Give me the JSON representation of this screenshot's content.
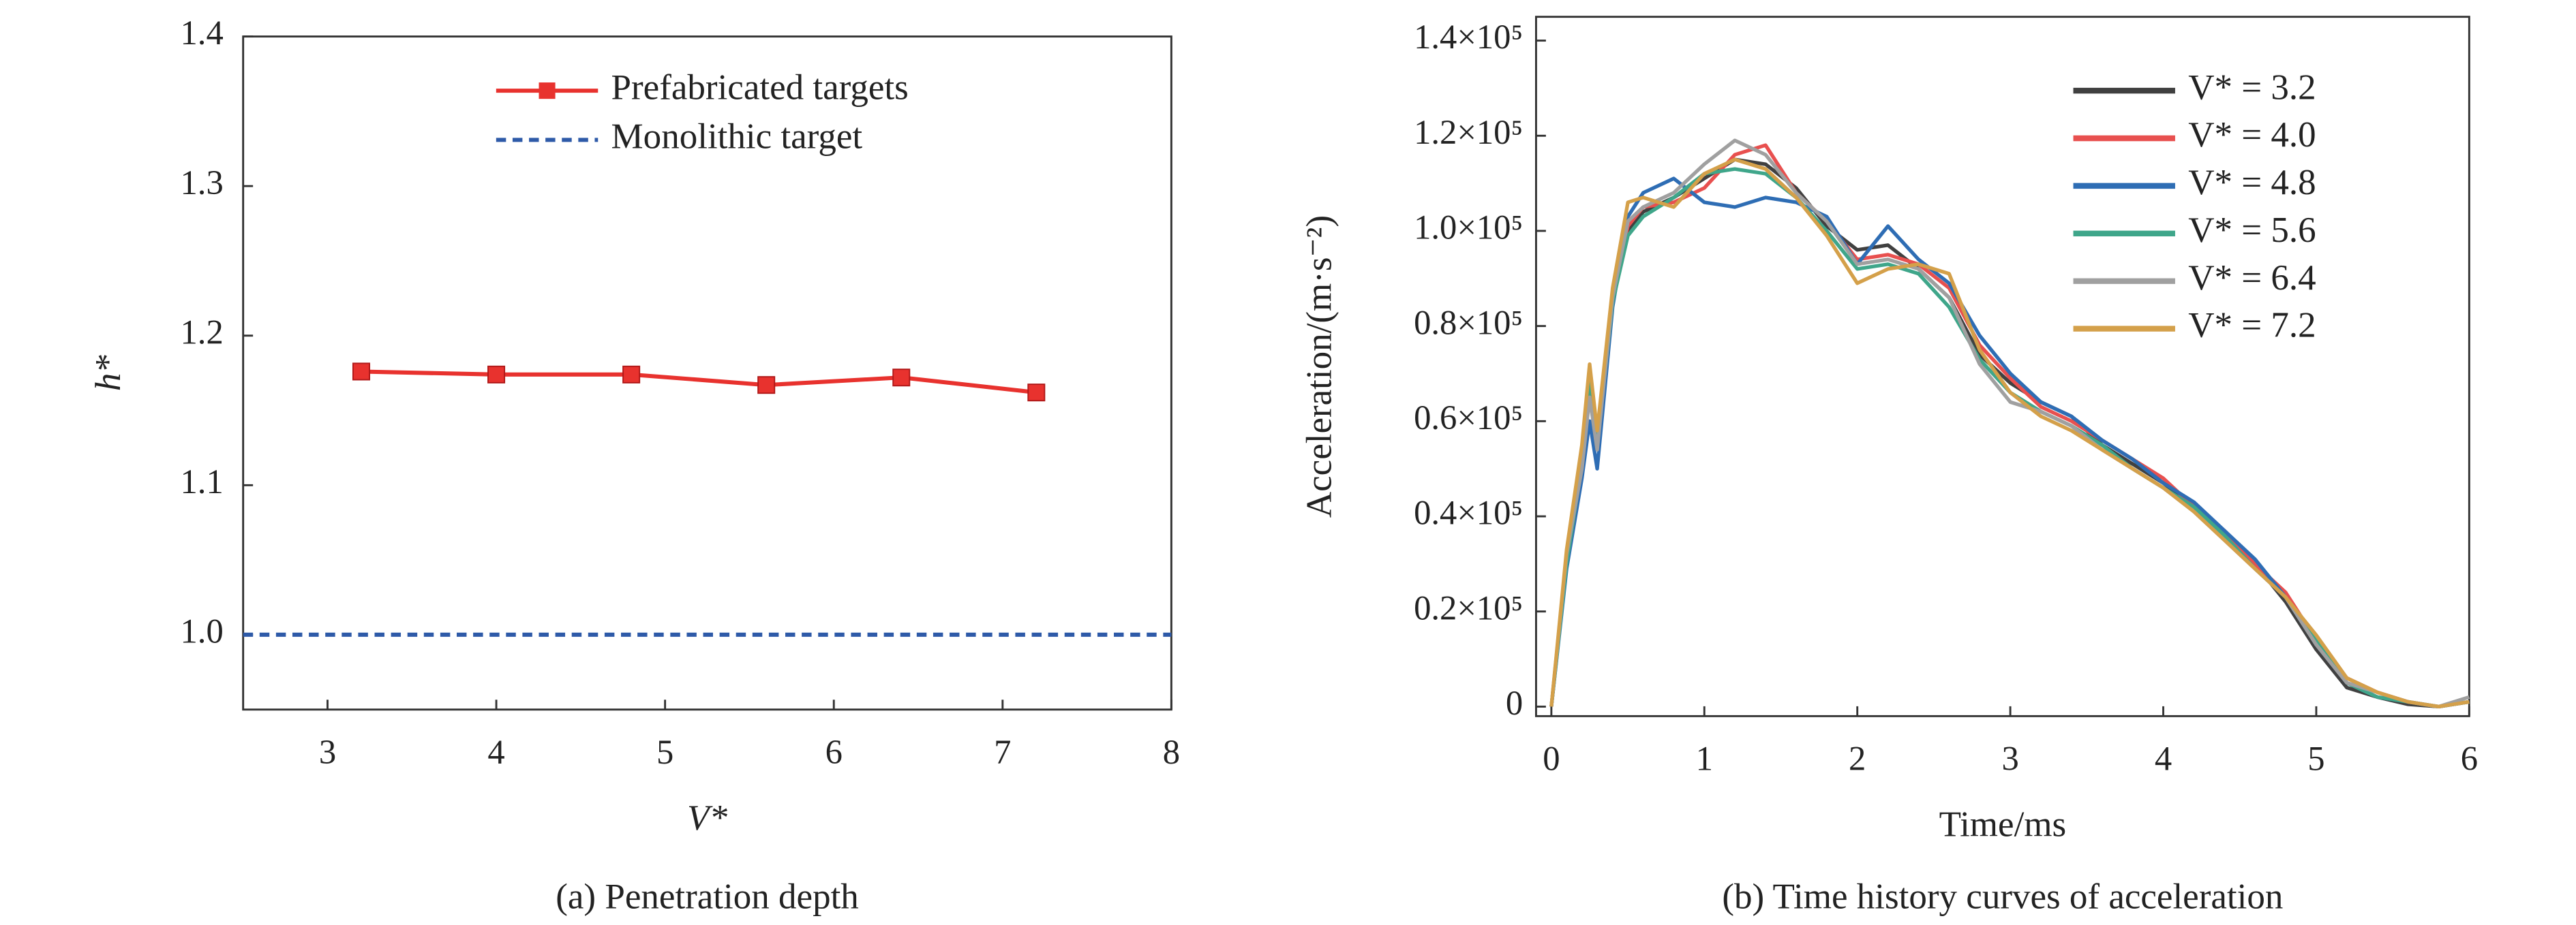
{
  "chart_data": [
    {
      "type": "line",
      "title": "(a) Penetration depth",
      "x_label": "V*",
      "y_label": "h*",
      "xlim": [
        2.5,
        8
      ],
      "xticks": [
        3,
        4,
        5,
        6,
        7,
        8
      ],
      "ylim": [
        0.95,
        1.4
      ],
      "yticks": [
        {
          "value": 1,
          "label": "1.0"
        },
        1.1,
        1.2,
        1.3,
        1.4
      ],
      "legend": "upper right",
      "series": [
        {
          "name": "Prefabricated targets",
          "color": "#e8322e",
          "marker": "square",
          "linestyle": "solid",
          "x": [
            3.2,
            4.0,
            4.8,
            5.6,
            6.4,
            7.2
          ],
          "values": [
            1.176,
            1.174,
            1.174,
            1.167,
            1.172,
            1.162
          ]
        },
        {
          "name": "Monolithic target",
          "color": "#2e5aa8",
          "linestyle": "dashed",
          "x": [
            2.5,
            8
          ],
          "values": [
            1.0,
            1.0
          ]
        }
      ]
    },
    {
      "type": "line",
      "title": "(b) Time history curves of acceleration",
      "x_label": "Time/ms",
      "y_label": "Acceleration/(m·s⁻²)",
      "xlim": [
        -0.1,
        6
      ],
      "xticks": [
        0,
        1,
        2,
        3,
        4,
        5,
        6
      ],
      "ylim": [
        -2000,
        145000
      ],
      "yticks": [
        0,
        {
          "value": 20000,
          "label": "0.2×10⁵"
        },
        {
          "value": 40000,
          "label": "0.4×10⁵"
        },
        {
          "value": 60000,
          "label": "0.6×10⁵"
        },
        {
          "value": 80000,
          "label": "0.8×10⁵"
        },
        {
          "value": 100000,
          "label": "1.0×10⁵"
        },
        {
          "value": 120000,
          "label": "1.2×10⁵"
        },
        {
          "value": 140000,
          "label": "1.4×10⁵"
        }
      ],
      "legend": "upper right",
      "x": [
        0,
        0.1,
        0.2,
        0.25,
        0.3,
        0.4,
        0.5,
        0.6,
        0.8,
        1.0,
        1.2,
        1.4,
        1.6,
        1.8,
        2.0,
        2.2,
        2.4,
        2.6,
        2.8,
        3.0,
        3.2,
        3.4,
        3.6,
        3.8,
        4.0,
        4.2,
        4.4,
        4.6,
        4.8,
        5.0,
        5.2,
        5.4,
        5.6,
        5.8,
        6.0
      ],
      "series": [
        {
          "name": "V* = 3.2",
          "color": "#404040",
          "linestyle": "solid",
          "values": [
            0,
            30000,
            50000,
            68000,
            56000,
            86000,
            100000,
            104000,
            107000,
            111000,
            115000,
            114000,
            109000,
            101000,
            96000,
            97000,
            92000,
            86000,
            74000,
            68000,
            64000,
            61000,
            55000,
            51000,
            47000,
            42000,
            36000,
            30000,
            22000,
            12000,
            4000,
            2000,
            500,
            0,
            1000
          ]
        },
        {
          "name": "V* = 4.0",
          "color": "#e8504f",
          "linestyle": "solid",
          "values": [
            0,
            31000,
            52000,
            70000,
            57000,
            87000,
            101000,
            105000,
            106000,
            109000,
            116000,
            118000,
            108000,
            102000,
            94000,
            95000,
            93000,
            88000,
            76000,
            69000,
            63000,
            60000,
            56000,
            52000,
            48000,
            42000,
            37000,
            30000,
            24000,
            14000,
            6000,
            3000,
            1000,
            0,
            1000
          ]
        },
        {
          "name": "V* = 4.8",
          "color": "#2e6db4",
          "linestyle": "solid",
          "values": [
            0,
            29000,
            48000,
            60000,
            50000,
            84000,
            103000,
            108000,
            111000,
            106000,
            105000,
            107000,
            106000,
            103000,
            93000,
            101000,
            94000,
            89000,
            78000,
            70000,
            64000,
            61000,
            56000,
            52000,
            47000,
            43000,
            37000,
            31000,
            23000,
            13000,
            5000,
            2000,
            1000,
            0,
            1000
          ]
        },
        {
          "name": "V* = 5.6",
          "color": "#3fa68a",
          "linestyle": "solid",
          "values": [
            0,
            30000,
            51000,
            69000,
            55000,
            85000,
            99000,
            103000,
            107000,
            112000,
            113000,
            112000,
            107000,
            100000,
            92000,
            93000,
            91000,
            84000,
            73000,
            66000,
            62000,
            59000,
            55000,
            50000,
            46000,
            42000,
            36000,
            29000,
            23000,
            14000,
            5000,
            2000,
            1000,
            0,
            1000
          ]
        },
        {
          "name": "V* = 6.4",
          "color": "#a0a0a0",
          "linestyle": "solid",
          "values": [
            0,
            32000,
            50000,
            65000,
            54000,
            86000,
            102000,
            105000,
            108000,
            114000,
            119000,
            116000,
            108000,
            102000,
            93000,
            94000,
            92000,
            86000,
            72000,
            64000,
            62000,
            59000,
            54000,
            50000,
            46000,
            41000,
            35000,
            29000,
            23000,
            13000,
            5000,
            3000,
            1000,
            0,
            2000
          ]
        },
        {
          "name": "V* = 7.2",
          "color": "#d4a04a",
          "linestyle": "solid",
          "values": [
            0,
            33000,
            55000,
            72000,
            58000,
            88000,
            106000,
            107000,
            105000,
            112000,
            115000,
            113000,
            107000,
            99000,
            89000,
            92000,
            93000,
            91000,
            75000,
            66000,
            61000,
            58000,
            54000,
            50000,
            46000,
            41000,
            35000,
            29000,
            23000,
            15000,
            6000,
            3000,
            1000,
            0,
            1000
          ]
        }
      ]
    }
  ]
}
